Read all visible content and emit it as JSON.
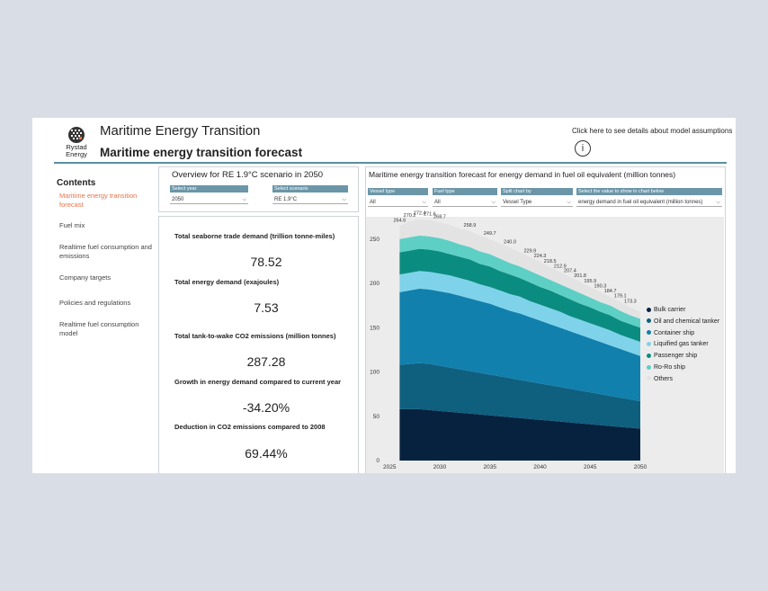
{
  "header": {
    "logo_text_1": "Rystad",
    "logo_text_2": "Energy",
    "app_title": "Maritime Energy Transition",
    "page_title": "Maritime energy transition forecast",
    "assumptions_link": "Click here to see details about model assumptions",
    "info_icon": "i"
  },
  "sidebar": {
    "title": "Contents",
    "items": [
      {
        "label": "Maritime energy transition forecast"
      },
      {
        "label": "Fuel mix"
      },
      {
        "label": "Realtime fuel consumption and emissions"
      },
      {
        "label": "Company targets"
      },
      {
        "label": "Policies and regulations"
      },
      {
        "label": "Realtime fuel consumption model"
      }
    ],
    "active_color": "#e8734a"
  },
  "overview": {
    "title": "Overview for RE 1.9°C scenario in 2050",
    "year_label": "Select year",
    "year_value": "2050",
    "scenario_label": "Select scenario",
    "scenario_value": "RE 1.9°C"
  },
  "kpis": [
    {
      "label": "Total seaborne trade demand (trillion tonne-miles)",
      "value": "78.52"
    },
    {
      "label": "Total energy demand (exajoules)",
      "value": "7.53"
    },
    {
      "label": "Total tank-to-wake CO2 emissions (million tonnes)",
      "value": "287.28"
    },
    {
      "label": "Growth in energy demand compared to current year",
      "value": "-34.20%"
    },
    {
      "label": "Deduction in CO2 emissions compared to 2008",
      "value": "69.44%"
    }
  ],
  "forecast": {
    "title": "Maritime energy transition forecast for energy demand in fuel oil equivalent (million tonnes)",
    "filters": [
      {
        "label": "Vessel type",
        "value": "All"
      },
      {
        "label": "Fuel type",
        "value": "All"
      },
      {
        "label": "Split chart by",
        "value": "Vessel Type"
      },
      {
        "label": "Select the value to show in chart below",
        "value": "energy demand in fuel oil equivalent (million tonnes)"
      }
    ]
  },
  "chart_data": {
    "type": "area",
    "stacked": true,
    "title": "",
    "xlabel": "",
    "ylabel": "",
    "x": [
      2026,
      2027,
      2028,
      2029,
      2030,
      2031,
      2032,
      2033,
      2034,
      2035,
      2036,
      2037,
      2038,
      2039,
      2040,
      2041,
      2042,
      2043,
      2044,
      2045,
      2046,
      2047,
      2048,
      2049,
      2050
    ],
    "x_ticks": [
      2025,
      2030,
      2035,
      2040,
      2045,
      2050
    ],
    "x_range": [
      2024.8,
      2050
    ],
    "ylim": [
      0,
      265
    ],
    "y_ticks": [
      0,
      50,
      100,
      150,
      200,
      250
    ],
    "totals": [
      264.6,
      270.2,
      272.4,
      271.6,
      268.7,
      266.0,
      262.0,
      258.9,
      254.0,
      249.7,
      245.0,
      240.0,
      235.0,
      229.9,
      224.3,
      218.5,
      212.9,
      207.4,
      201.8,
      195.9,
      190.3,
      184.7,
      179.1,
      173.3,
      168.0
    ],
    "total_labels": [
      "264.6",
      "270.2",
      "272.4",
      "271.6",
      "268.7",
      "",
      "",
      "258.9",
      "",
      "249.7",
      "",
      "240.0",
      "",
      "229.9",
      "224.3",
      "218.5",
      "212.9",
      "207.4",
      "201.8",
      "195.9",
      "190.3",
      "184.7",
      "179.1",
      "173.3",
      ""
    ],
    "series": [
      {
        "name": "Bulk carrier",
        "color": "#06223f",
        "values": [
          58,
          58,
          58,
          57,
          56,
          55,
          54,
          53,
          52,
          51,
          50,
          49,
          48,
          47,
          46,
          45,
          44,
          43,
          42,
          41,
          40,
          39,
          38,
          37,
          36
        ]
      },
      {
        "name": "Oil and chemical tanker",
        "color": "#0f5f7f",
        "values": [
          50,
          51,
          52,
          52,
          51,
          50,
          49,
          48,
          47,
          46,
          45,
          44,
          43,
          42,
          41,
          40,
          39,
          38,
          37,
          36,
          35,
          34,
          33,
          32,
          31
        ]
      },
      {
        "name": "Container ship",
        "color": "#1180ad",
        "values": [
          82,
          83,
          84,
          84,
          84,
          84,
          83,
          82,
          81,
          80,
          78,
          76,
          75,
          73,
          71,
          69,
          67,
          65,
          63,
          61,
          59,
          57,
          55,
          53,
          51
        ]
      },
      {
        "name": "Liquified gas tanker",
        "color": "#7ed3ea",
        "values": [
          20,
          20,
          20,
          20,
          20,
          20,
          20,
          20,
          19,
          19,
          19,
          19,
          19,
          18,
          18,
          18,
          18,
          17,
          17,
          17,
          17,
          17,
          16,
          16,
          16
        ]
      },
      {
        "name": "Passenger ship",
        "color": "#0b8c80",
        "values": [
          25,
          25,
          25,
          25,
          25,
          24,
          24,
          24,
          23,
          23,
          22,
          22,
          21,
          21,
          20,
          20,
          19,
          19,
          18,
          18,
          17,
          17,
          16,
          16,
          16
        ]
      },
      {
        "name": "Ro-Ro ship",
        "color": "#5ecfc4",
        "values": [
          15,
          15,
          15,
          15,
          15,
          15,
          14,
          14,
          14,
          14,
          14,
          13,
          13,
          13,
          13,
          12,
          12,
          12,
          12,
          11,
          11,
          11,
          11,
          10,
          10
        ]
      },
      {
        "name": "Others",
        "color": "#e3e3e3",
        "values": [
          14.6,
          18.2,
          18.4,
          18.6,
          17.7,
          18.0,
          18.0,
          17.9,
          18.0,
          16.7,
          17.0,
          17.0,
          16.0,
          15.9,
          15.3,
          14.5,
          13.9,
          13.4,
          12.8,
          11.9,
          11.3,
          9.7,
          10.1,
          9.3,
          8.0
        ]
      }
    ],
    "legend_position": "right",
    "grid": false
  }
}
